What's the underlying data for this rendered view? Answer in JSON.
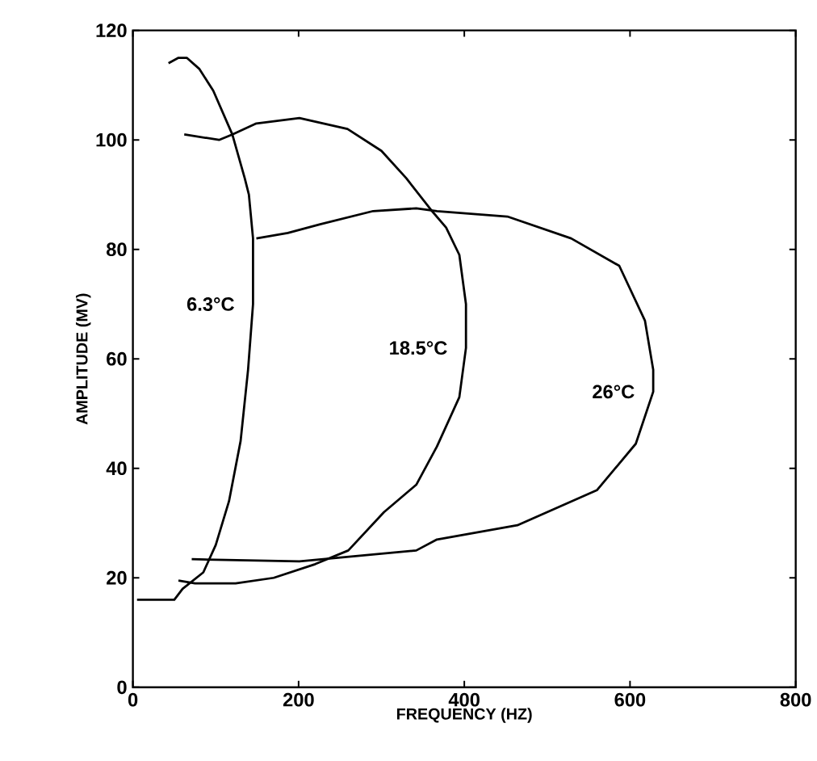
{
  "chart_data": {
    "type": "line",
    "xlabel": "FREQUENCY (HZ)",
    "ylabel": "AMPLITUDE (MV)",
    "xlim": [
      0,
      800
    ],
    "ylim": [
      0,
      120
    ],
    "xticks": [
      0,
      200,
      400,
      600,
      800
    ],
    "yticks": [
      0,
      20,
      40,
      60,
      80,
      100,
      120
    ],
    "grid": false,
    "legend": false,
    "marker": "none",
    "line_style": "solid",
    "series": [
      {
        "name": "6.3°C",
        "color": "#000000",
        "x": [
          5,
          50,
          60,
          85,
          100,
          116,
          130,
          139,
          145,
          145,
          140,
          135,
          120,
          97,
          80,
          65,
          55,
          43
        ],
        "values": [
          16,
          16,
          18,
          21,
          26,
          34,
          45,
          58,
          70,
          82,
          90,
          93,
          101,
          109,
          113,
          115,
          115,
          114
        ]
      },
      {
        "name": "18.5°C",
        "color": "#000000",
        "x": [
          55,
          75,
          124,
          170,
          220,
          260,
          303,
          342,
          367,
          394,
          402,
          402,
          394,
          378,
          361,
          330,
          300,
          259,
          201,
          149,
          120,
          104,
          62
        ],
        "values": [
          19.5,
          19,
          19,
          20,
          22.5,
          25,
          32,
          37,
          44,
          53,
          62,
          70,
          79,
          84,
          87,
          93,
          98,
          102,
          104,
          103,
          101,
          100,
          101
        ]
      },
      {
        "name": "26°C",
        "color": "#000000",
        "x": [
          71,
          201,
          342,
          367,
          464,
          560,
          607,
          628,
          628,
          618,
          587,
          529,
          452,
          367,
          342,
          290,
          226,
          187,
          149
        ],
        "values": [
          23.4,
          23,
          25,
          27,
          29.6,
          36,
          44.5,
          54,
          58,
          67,
          77,
          82,
          86,
          87,
          87.5,
          87,
          84.6,
          83,
          82
        ]
      }
    ]
  }
}
